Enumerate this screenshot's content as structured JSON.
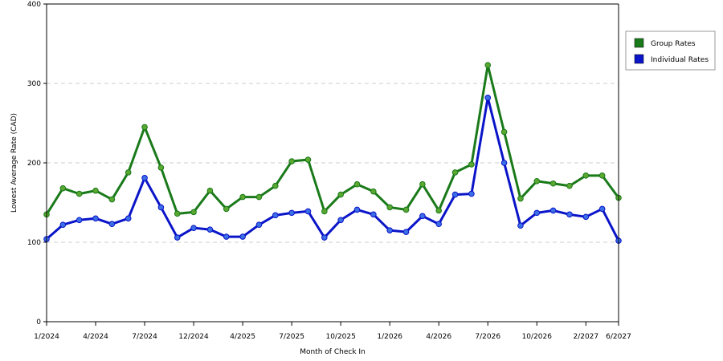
{
  "chart_data": {
    "type": "line",
    "xlabel": "Month of Check In",
    "ylabel": "Lowest Average Rate (CAD)",
    "ylim": [
      0,
      400
    ],
    "yticks": [
      0,
      100,
      200,
      300,
      400
    ],
    "grid": "horizontal-dashed",
    "legend_position": "right",
    "x_ticks": [
      {
        "index": 0,
        "label": "1/2024"
      },
      {
        "index": 3,
        "label": "4/2024"
      },
      {
        "index": 6,
        "label": "7/2024"
      },
      {
        "index": 9,
        "label": "12/2024"
      },
      {
        "index": 12,
        "label": "4/2025"
      },
      {
        "index": 15,
        "label": "7/2025"
      },
      {
        "index": 18,
        "label": "10/2025"
      },
      {
        "index": 21,
        "label": "1/2026"
      },
      {
        "index": 24,
        "label": "4/2026"
      },
      {
        "index": 27,
        "label": "7/2026"
      },
      {
        "index": 30,
        "label": "10/2026"
      },
      {
        "index": 33,
        "label": "2/2027"
      },
      {
        "index": 35,
        "label": "6/2027"
      }
    ],
    "series": [
      {
        "name": "Group Rates",
        "color": "#1a7a1a",
        "marker_color": "#5aa832",
        "values": [
          135,
          168,
          161,
          165,
          154,
          188,
          245,
          194,
          136,
          138,
          165,
          142,
          157,
          157,
          171,
          202,
          204,
          139,
          160,
          173,
          164,
          144,
          141,
          173,
          140,
          188,
          198,
          323,
          239,
          155,
          177,
          174,
          171,
          184,
          184,
          156
        ]
      },
      {
        "name": "Individual Rates",
        "color": "#0a14c8",
        "marker_color": "#3c6ee6",
        "values": [
          104,
          122,
          128,
          130,
          123,
          130,
          181,
          144,
          106,
          118,
          116,
          107,
          107,
          122,
          134,
          137,
          139,
          106,
          128,
          141,
          135,
          115,
          113,
          133,
          123,
          160,
          161,
          282,
          200,
          121,
          137,
          140,
          135,
          132,
          142,
          102
        ]
      }
    ]
  }
}
